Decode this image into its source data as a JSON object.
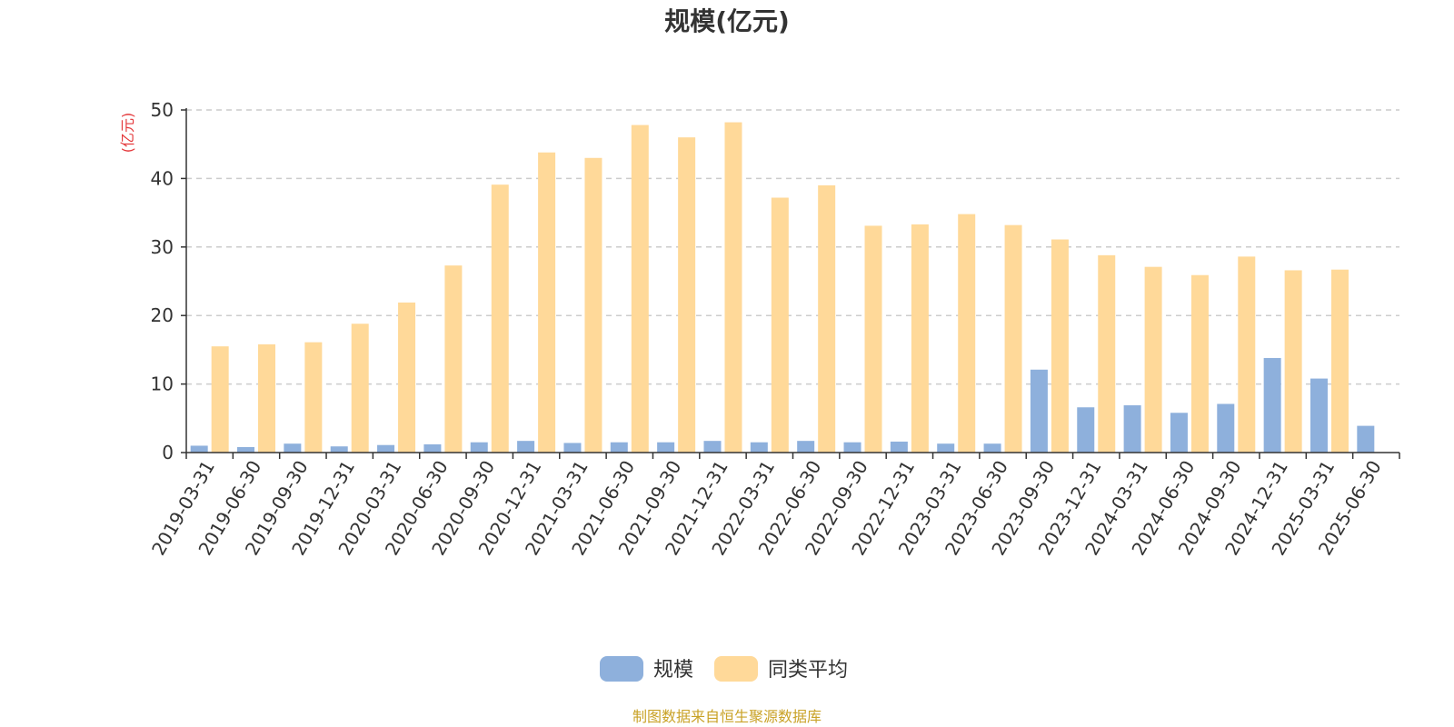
{
  "chart_data": {
    "type": "bar",
    "title": "规模(亿元)",
    "ylabel": "(亿元)",
    "ylim": [
      0,
      50
    ],
    "yticks": [
      0,
      10,
      20,
      30,
      40,
      50
    ],
    "grid": true,
    "legend_position": "bottom",
    "categories": [
      "2019-03-31",
      "2019-06-30",
      "2019-09-30",
      "2019-12-31",
      "2020-03-31",
      "2020-06-30",
      "2020-09-30",
      "2020-12-31",
      "2021-03-31",
      "2021-06-30",
      "2021-09-30",
      "2021-12-31",
      "2022-03-31",
      "2022-06-30",
      "2022-09-30",
      "2022-12-31",
      "2023-03-31",
      "2023-06-30",
      "2023-09-30",
      "2023-12-31",
      "2024-03-31",
      "2024-06-30",
      "2024-09-30",
      "2024-12-31",
      "2025-03-31",
      "2025-06-30"
    ],
    "series": [
      {
        "name": "规模",
        "color": "#8eb0dc",
        "values": [
          1.0,
          0.8,
          1.3,
          0.9,
          1.1,
          1.2,
          1.5,
          1.7,
          1.4,
          1.5,
          1.5,
          1.7,
          1.5,
          1.7,
          1.5,
          1.6,
          1.3,
          1.3,
          12.1,
          6.6,
          6.9,
          5.8,
          7.1,
          13.8,
          10.8,
          3.9
        ]
      },
      {
        "name": "同类平均",
        "color": "#ffd999",
        "values": [
          15.5,
          15.8,
          16.1,
          18.8,
          21.9,
          27.3,
          39.1,
          43.8,
          43.0,
          47.8,
          46.0,
          48.2,
          37.2,
          39.0,
          33.1,
          33.3,
          34.8,
          33.2,
          31.1,
          28.8,
          27.1,
          25.9,
          28.6,
          26.6,
          26.7,
          null
        ]
      }
    ]
  },
  "footer": {
    "source": "制图数据来自恒生聚源数据库"
  }
}
